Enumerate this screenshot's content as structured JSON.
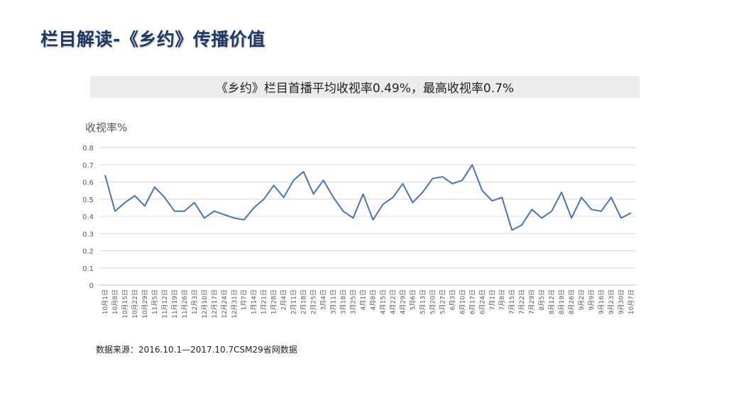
{
  "header": {
    "title": "栏目解读-《乡约》传播价值"
  },
  "banner": {
    "text": "《乡约》栏目首播平均收视率0.49%，最高收视率0.7%"
  },
  "source": {
    "text": "数据来源：2016.10.1—2017.10.7CSM29省网数据"
  },
  "chart_data": {
    "type": "line",
    "ylabel": "收视率%",
    "ylim": [
      0,
      0.8
    ],
    "yticks": [
      "0",
      "0.1",
      "0.2",
      "0.3",
      "0.4",
      "0.5",
      "0.6",
      "0.7",
      "0.8"
    ],
    "grid": true,
    "line_color": "#4a74b0",
    "categories": [
      "10月1日",
      "10月8日",
      "10月15日",
      "10月22日",
      "10月29日",
      "11月5日",
      "11月12日",
      "11月19日",
      "11月26日",
      "12月3日",
      "12月10日",
      "12月17日",
      "12月24日",
      "12月31日",
      "1月7日",
      "1月14日",
      "1月21日",
      "1月28日",
      "2月4日",
      "2月11日",
      "2月18日",
      "2月25日",
      "3月4日",
      "3月11日",
      "3月18日",
      "3月25日",
      "4月1日",
      "4月8日",
      "4月15日",
      "4月22日",
      "4月29日",
      "5月6日",
      "5月13日",
      "5月20日",
      "5月27日",
      "6月3日",
      "6月10日",
      "6月17日",
      "6月24日",
      "7月1日",
      "7月8日",
      "7月15日",
      "7月22日",
      "7月29日",
      "8月5日",
      "8月12日",
      "8月19日",
      "8月26日",
      "9月2日",
      "9月9日",
      "9月16日",
      "9月23日",
      "9月30日",
      "10月7日"
    ],
    "values": [
      0.64,
      0.43,
      0.48,
      0.52,
      0.46,
      0.57,
      0.51,
      0.43,
      0.43,
      0.48,
      0.39,
      0.43,
      0.41,
      0.39,
      0.38,
      0.45,
      0.5,
      0.58,
      0.51,
      0.61,
      0.66,
      0.53,
      0.61,
      0.51,
      0.43,
      0.39,
      0.53,
      0.38,
      0.47,
      0.51,
      0.59,
      0.48,
      0.54,
      0.62,
      0.63,
      0.59,
      0.61,
      0.7,
      0.55,
      0.49,
      0.51,
      0.32,
      0.35,
      0.44,
      0.39,
      0.43,
      0.54,
      0.39,
      0.51,
      0.44,
      0.43,
      0.51,
      0.39,
      0.42
    ]
  }
}
